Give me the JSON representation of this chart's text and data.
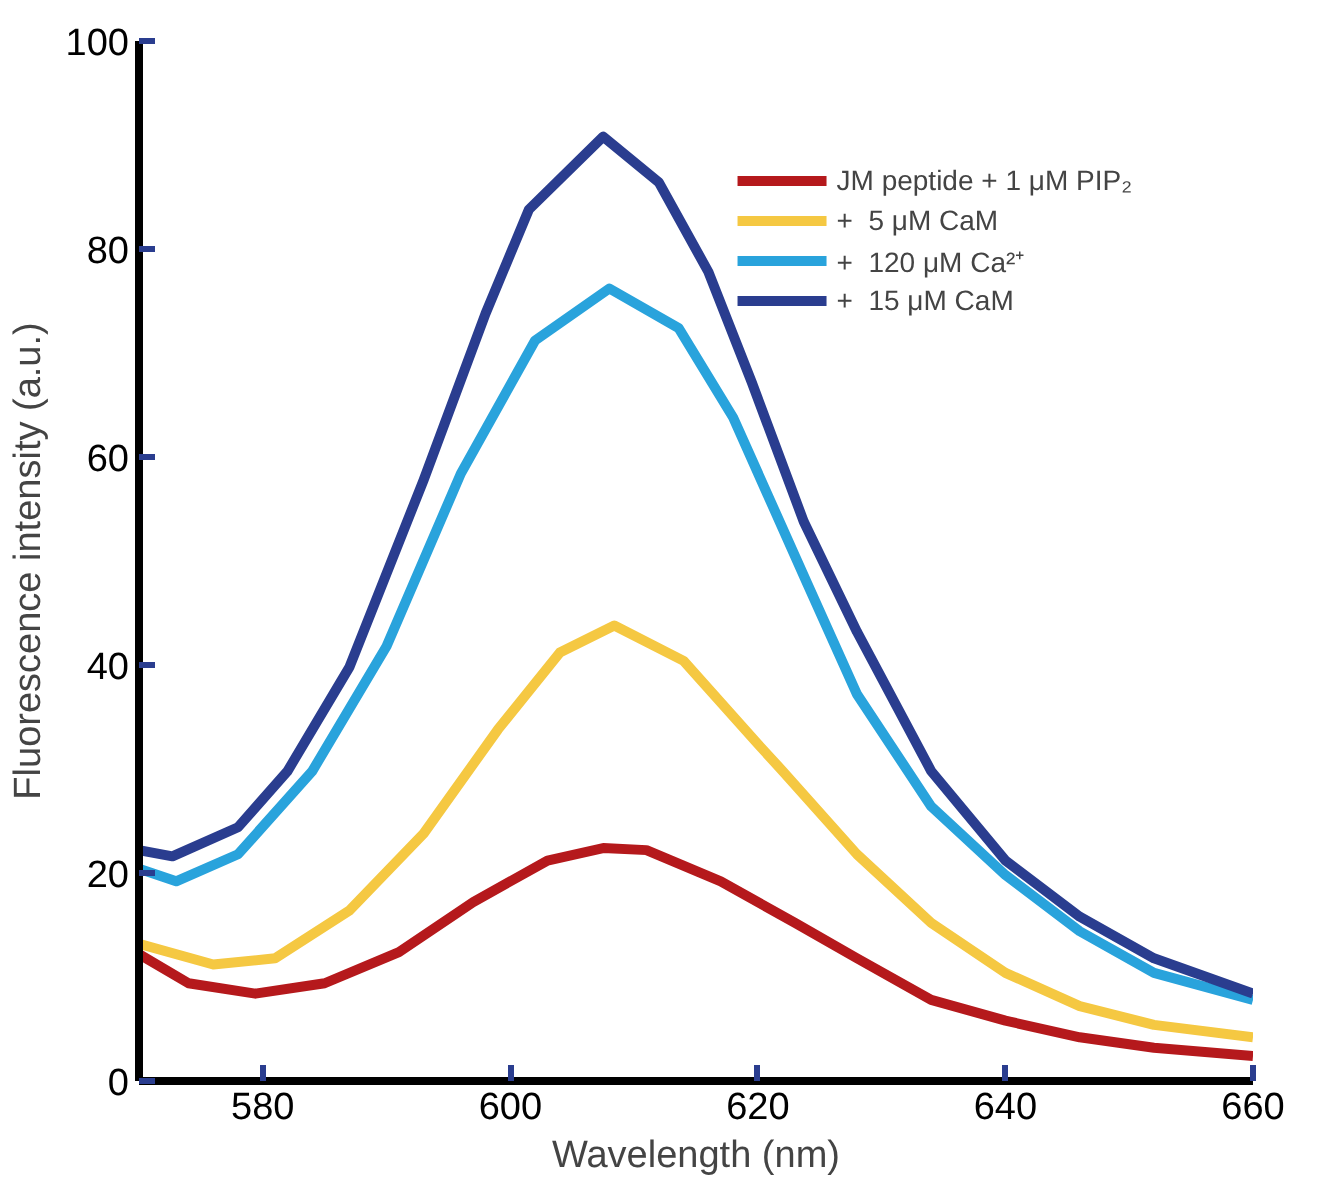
{
  "chart_data": {
    "type": "line",
    "xlabel": "Wavelength (nm)",
    "ylabel": "Fluorescence intensity (a.u.)",
    "xlim": [
      570,
      660
    ],
    "ylim": [
      0,
      100
    ],
    "xticks": [
      580,
      600,
      620,
      640,
      660
    ],
    "yticks": [
      0,
      20,
      40,
      60,
      80,
      100
    ],
    "grid": false,
    "legend": "top right",
    "line_style": "solid",
    "marker": "none",
    "series": [
      {
        "name": "JM peptide + 1 μM PIP₂",
        "color": "#b5191c",
        "x": [
          570,
          574,
          579.4,
          585,
          591,
          597,
          603,
          607.5,
          611,
          617,
          623,
          628,
          634,
          640,
          646,
          652,
          660
        ],
        "values": [
          12.2,
          9.4,
          8.4,
          9.4,
          12.4,
          17.2,
          21.2,
          22.4,
          22.2,
          19.2,
          15.2,
          11.8,
          7.8,
          5.8,
          4.2,
          3.2,
          2.4
        ]
      },
      {
        "name": "+  5 μM CaM",
        "color": "#f5c842",
        "x": [
          570,
          576,
          581,
          587,
          593,
          599,
          604,
          608.4,
          614,
          620,
          622,
          628,
          634,
          640,
          646,
          652,
          660
        ],
        "values": [
          13.2,
          11.2,
          11.8,
          16.4,
          23.8,
          33.8,
          41.2,
          43.8,
          40.4,
          32.4,
          29.8,
          21.8,
          15.2,
          10.4,
          7.2,
          5.4,
          4.2
        ]
      },
      {
        "name": "+  120 μM Ca²⁺",
        "color": "#29a3dc",
        "x": [
          570,
          573,
          578,
          584,
          590,
          596,
          602,
          608,
          613.6,
          618,
          624,
          628,
          634,
          640,
          646,
          652,
          660
        ],
        "values": [
          20.4,
          19.2,
          21.8,
          29.8,
          41.8,
          58.4,
          71.2,
          76.2,
          72.4,
          63.8,
          47.8,
          37.2,
          26.4,
          19.8,
          14.4,
          10.4,
          7.8
        ]
      },
      {
        "name": "+  15 μM CaM",
        "color": "#2a3d8f",
        "x": [
          570,
          572.7,
          578,
          582,
          587,
          593,
          598,
          601.5,
          607.5,
          612,
          616,
          619.5,
          623.7,
          628,
          634,
          640,
          646,
          652,
          660
        ],
        "values": [
          22.2,
          21.6,
          24.4,
          29.8,
          39.8,
          57.8,
          73.8,
          83.8,
          90.8,
          86.4,
          77.8,
          67.2,
          53.8,
          43.2,
          29.8,
          21.2,
          15.8,
          11.8,
          8.4
        ]
      }
    ]
  }
}
